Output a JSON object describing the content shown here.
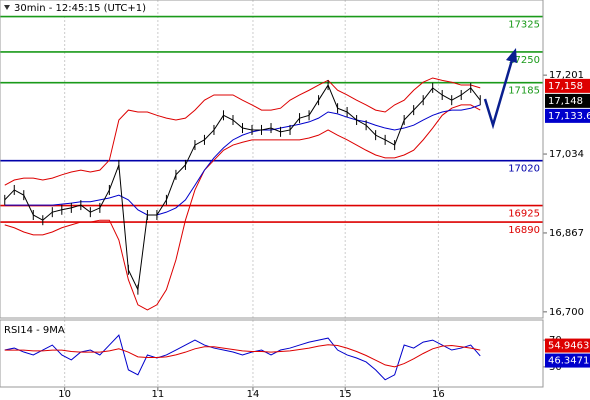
{
  "chart_data": [
    {
      "type": "line",
      "title": "30min - 12:45:15 (UTC+1)",
      "xlim": [
        -0.5,
        56.6
      ],
      "ylim": [
        16687,
        17360
      ],
      "yticks": [
        {
          "value": 16700,
          "label": "16,700"
        },
        {
          "value": 16867,
          "label": "16,867"
        },
        {
          "value": 17034,
          "label": "17,034"
        },
        {
          "value": 17201,
          "label": "17,201"
        }
      ],
      "levels": [
        {
          "value": 17325,
          "color": "#1a9a1a"
        },
        {
          "value": 17250,
          "color": "#1a9a1a"
        },
        {
          "value": 17185,
          "color": "#1a9a1a"
        },
        {
          "value": 17020,
          "color": "#0000aa"
        },
        {
          "value": 16925,
          "color": "#dd0000"
        },
        {
          "value": 16890,
          "color": "#dd0000"
        }
      ],
      "series": [
        {
          "color": "#dd0000",
          "values": [
            16968,
            16979,
            16983,
            16983,
            16979,
            16983,
            16990,
            16996,
            17000,
            16996,
            17000,
            17021,
            17106,
            17127,
            17123,
            17123,
            17116,
            17110,
            17106,
            17110,
            17127,
            17148,
            17159,
            17159,
            17159,
            17148,
            17138,
            17127,
            17127,
            17131,
            17148,
            17159,
            17169,
            17180,
            17190,
            17169,
            17159,
            17148,
            17138,
            17127,
            17123,
            17138,
            17148,
            17169,
            17186,
            17195,
            17190,
            17186,
            17180,
            17180,
            17174
          ]
        },
        {
          "color": "#dd0000",
          "values": [
            16884,
            16878,
            16869,
            16863,
            16863,
            16869,
            16878,
            16884,
            16890,
            16890,
            16894,
            16894,
            16852,
            16768,
            16715,
            16704,
            16715,
            16747,
            16810,
            16894,
            16958,
            17000,
            17021,
            17042,
            17053,
            17059,
            17064,
            17064,
            17064,
            17064,
            17064,
            17064,
            17068,
            17074,
            17085,
            17074,
            17064,
            17053,
            17042,
            17032,
            17026,
            17026,
            17032,
            17042,
            17064,
            17089,
            17116,
            17131,
            17138,
            17138,
            17127
          ]
        },
        {
          "color": "#0000cc",
          "values": [
            16926,
            16926,
            16926,
            16926,
            16926,
            16926,
            16928,
            16930,
            16933,
            16933,
            16937,
            16941,
            16947,
            16937,
            16916,
            16905,
            16905,
            16911,
            16920,
            16937,
            16968,
            17000,
            17026,
            17047,
            17064,
            17074,
            17081,
            17085,
            17085,
            17089,
            17093,
            17097,
            17102,
            17110,
            17123,
            17119,
            17112,
            17106,
            17102,
            17095,
            17089,
            17085,
            17089,
            17095,
            17106,
            17116,
            17123,
            17127,
            17127,
            17131,
            17138
          ]
        },
        {
          "color": "#000000",
          "values": [
            16937,
            16958,
            16947,
            16905,
            16894,
            16911,
            16916,
            16920,
            16926,
            16911,
            16920,
            16958,
            17011,
            16789,
            16747,
            16905,
            16905,
            16937,
            16990,
            17011,
            17053,
            17064,
            17085,
            17116,
            17106,
            17089,
            17085,
            17085,
            17089,
            17081,
            17085,
            17110,
            17116,
            17148,
            17180,
            17131,
            17123,
            17106,
            17095,
            17074,
            17064,
            17053,
            17106,
            17127,
            17148,
            17174,
            17159,
            17148,
            17159,
            17174,
            17148
          ]
        }
      ],
      "price_tags": [
        {
          "value": 17158,
          "label": "17,158",
          "color": "#dd0000"
        },
        {
          "value": 17148,
          "label": "17,148",
          "color": "#000000"
        },
        {
          "value": 17133.6,
          "label": "17,133.6",
          "color": "#0000cc"
        }
      ]
    },
    {
      "type": "line",
      "title": "RSI14 - 9MA",
      "xlim": [
        -0.5,
        56.6
      ],
      "xticks": [
        {
          "value": 6.3,
          "label": "10"
        },
        {
          "value": 16.1,
          "label": "11"
        },
        {
          "value": 26.1,
          "label": "14"
        },
        {
          "value": 35.8,
          "label": "15"
        },
        {
          "value": 45.6,
          "label": "16"
        }
      ],
      "ylim": [
        0,
        100
      ],
      "yticks": [
        30,
        70
      ],
      "series": [
        {
          "color": "#0000cc",
          "values": [
            55.2,
            58.1,
            52.2,
            47.8,
            55.2,
            62.6,
            47.8,
            40.4,
            52.2,
            55.2,
            47.8,
            62.6,
            77.4,
            25.6,
            18.2,
            47.8,
            43.3,
            47.8,
            55.2,
            62.6,
            70,
            62.6,
            58.1,
            55.2,
            52.2,
            47.8,
            52.2,
            55.2,
            47.8,
            55.2,
            58.1,
            62.6,
            67,
            70,
            73,
            55.2,
            47.8,
            43.3,
            37.4,
            25.6,
            10.8,
            18.2,
            62.6,
            58.1,
            67,
            70,
            62.6,
            55.2,
            58.1,
            62.6,
            46.3
          ]
        },
        {
          "color": "#dd0000",
          "values": [
            55,
            55,
            55,
            54,
            54,
            55,
            55,
            53,
            52,
            52,
            52,
            54,
            57,
            52,
            45,
            44,
            44,
            45,
            48,
            52,
            57,
            60,
            60,
            58,
            56,
            54,
            53,
            53,
            52,
            53,
            54,
            56,
            58,
            61,
            63,
            62,
            58,
            53,
            47,
            40,
            33,
            30,
            35,
            42,
            50,
            57,
            61,
            62,
            60,
            58,
            55
          ]
        }
      ],
      "price_tags": [
        {
          "value": 54.9463,
          "label": "54.9463",
          "color": "#dd0000"
        },
        {
          "value": 46.3471,
          "label": "46.3471",
          "color": "#0000cc"
        }
      ]
    }
  ]
}
